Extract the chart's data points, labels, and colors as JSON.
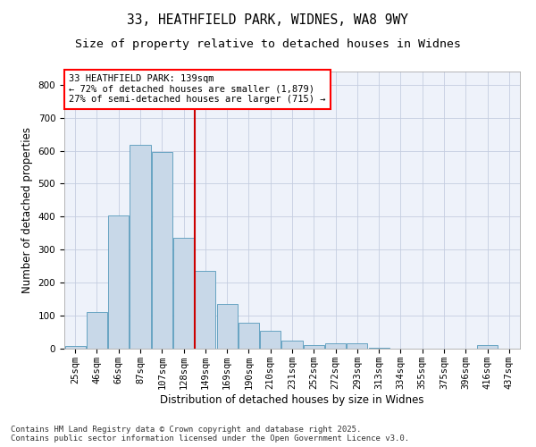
{
  "title_line1": "33, HEATHFIELD PARK, WIDNES, WA8 9WY",
  "title_line2": "Size of property relative to detached houses in Widnes",
  "xlabel": "Distribution of detached houses by size in Widnes",
  "ylabel": "Number of detached properties",
  "bar_color": "#c8d8e8",
  "bar_edge_color": "#5599bb",
  "background_color": "#eef2fa",
  "grid_color": "#c5cde0",
  "vline_color": "#cc0000",
  "vline_x_index": 6,
  "annotation_text": "33 HEATHFIELD PARK: 139sqm\n← 72% of detached houses are smaller (1,879)\n27% of semi-detached houses are larger (715) →",
  "categories": [
    "25sqm",
    "46sqm",
    "66sqm",
    "87sqm",
    "107sqm",
    "128sqm",
    "149sqm",
    "169sqm",
    "190sqm",
    "210sqm",
    "231sqm",
    "252sqm",
    "272sqm",
    "293sqm",
    "313sqm",
    "334sqm",
    "355sqm",
    "375sqm",
    "396sqm",
    "416sqm",
    "437sqm"
  ],
  "values": [
    8,
    110,
    405,
    617,
    595,
    335,
    237,
    135,
    78,
    55,
    25,
    12,
    15,
    17,
    3,
    1,
    0,
    0,
    0,
    10,
    0
  ],
  "ylim": [
    0,
    840
  ],
  "yticks": [
    0,
    100,
    200,
    300,
    400,
    500,
    600,
    700,
    800
  ],
  "footer_text": "Contains HM Land Registry data © Crown copyright and database right 2025.\nContains public sector information licensed under the Open Government Licence v3.0.",
  "title_fontsize": 10.5,
  "subtitle_fontsize": 9.5,
  "axis_label_fontsize": 8.5,
  "tick_fontsize": 7.5,
  "annotation_fontsize": 7.5,
  "footer_fontsize": 6.5
}
